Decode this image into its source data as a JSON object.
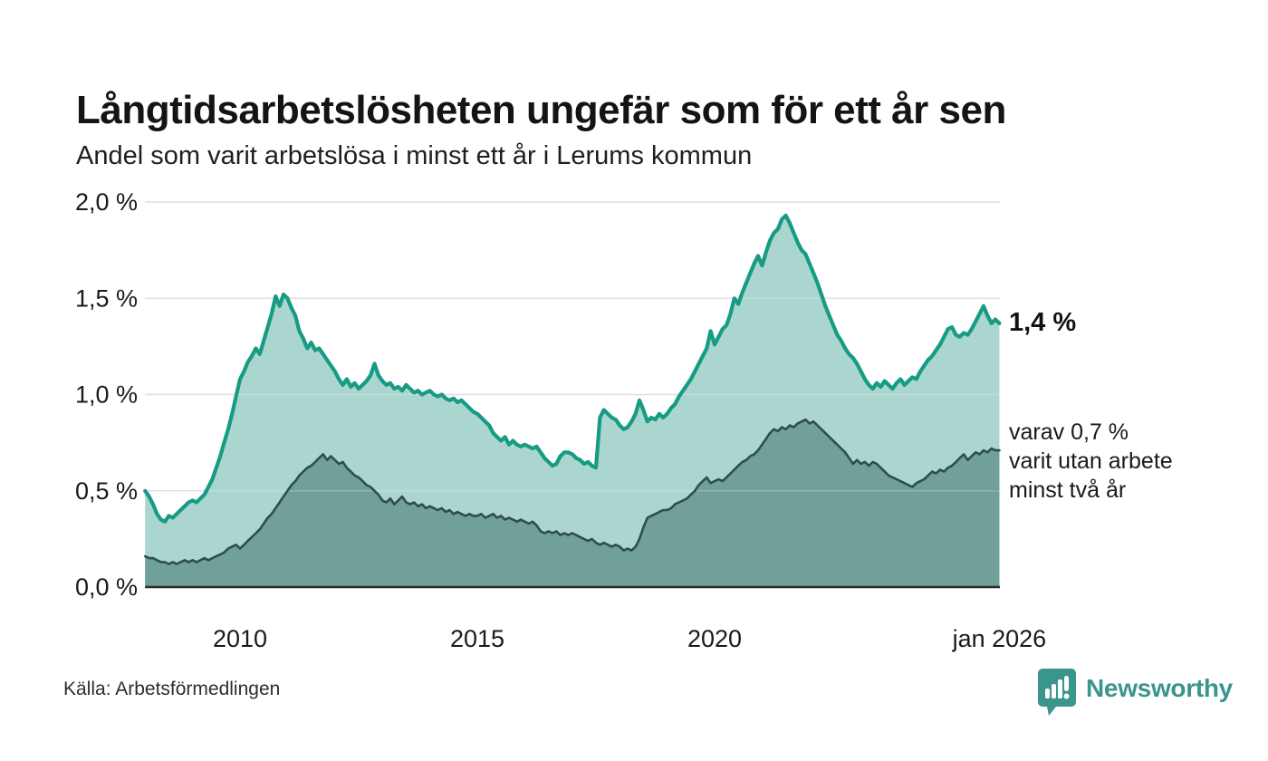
{
  "page": {
    "title": "Långtidsarbetslösheten ungefär som för ett år sen",
    "subtitle": "Andel som varit arbetslösa i minst ett år i Lerums kommun",
    "source": "Källa: Arbetsförmedlingen",
    "logo": {
      "name": "Newsworthy",
      "badge_color": "#3a958c",
      "badge_glyph": "bar-chart-exclamation"
    }
  },
  "chart_data": {
    "type": "area",
    "title": "Långtidsarbetslösheten ungefär som för ett år sen",
    "subtitle": "Andel som varit arbetslösa i minst ett år i Lerums kommun",
    "x_start_year": 2008,
    "x_interval_months": 1,
    "x_range": [
      "2008",
      "jan 2026"
    ],
    "ylim": [
      0.0,
      2.0
    ],
    "grid": "horizontal",
    "legend_position": "none",
    "colors": {
      "line_1yr": "#169b84",
      "fill_1yr": "#a6d4cc",
      "line_2yr": "#2e4f48",
      "fill_2yr": "#70a098",
      "gridline": "#d8d8d8",
      "baseline": "#2b2b2b"
    },
    "y_ticks": [
      {
        "value": 0.0,
        "label": "0,0 %"
      },
      {
        "value": 0.5,
        "label": "0,5 %"
      },
      {
        "value": 1.0,
        "label": "1,0 %"
      },
      {
        "value": 1.5,
        "label": "1,5 %"
      },
      {
        "value": 2.0,
        "label": "2,0 %"
      }
    ],
    "x_ticks": [
      {
        "year": 2010,
        "label": "2010"
      },
      {
        "year": 2015,
        "label": "2015"
      },
      {
        "year": 2020,
        "label": "2020"
      },
      {
        "year": 2026,
        "label": "jan 2026"
      }
    ],
    "series": [
      {
        "name": "arbetslösa minst ett år",
        "color": "#169b84",
        "fill": "#a6d4cc",
        "values": [
          0.5,
          0.47,
          0.43,
          0.38,
          0.35,
          0.34,
          0.37,
          0.36,
          0.38,
          0.4,
          0.42,
          0.44,
          0.45,
          0.44,
          0.46,
          0.48,
          0.52,
          0.56,
          0.62,
          0.68,
          0.75,
          0.82,
          0.9,
          0.99,
          1.08,
          1.12,
          1.17,
          1.2,
          1.24,
          1.21,
          1.28,
          1.35,
          1.42,
          1.51,
          1.46,
          1.52,
          1.5,
          1.45,
          1.41,
          1.33,
          1.29,
          1.24,
          1.27,
          1.23,
          1.24,
          1.21,
          1.18,
          1.15,
          1.12,
          1.08,
          1.05,
          1.08,
          1.04,
          1.06,
          1.03,
          1.05,
          1.07,
          1.1,
          1.16,
          1.1,
          1.07,
          1.05,
          1.06,
          1.03,
          1.04,
          1.02,
          1.05,
          1.03,
          1.01,
          1.02,
          1.0,
          1.01,
          1.02,
          1.0,
          0.99,
          1.0,
          0.98,
          0.97,
          0.98,
          0.96,
          0.97,
          0.95,
          0.93,
          0.91,
          0.9,
          0.88,
          0.86,
          0.84,
          0.8,
          0.78,
          0.76,
          0.78,
          0.74,
          0.76,
          0.74,
          0.73,
          0.74,
          0.73,
          0.72,
          0.73,
          0.7,
          0.67,
          0.65,
          0.63,
          0.64,
          0.68,
          0.7,
          0.7,
          0.69,
          0.67,
          0.66,
          0.64,
          0.65,
          0.63,
          0.62,
          0.88,
          0.92,
          0.9,
          0.88,
          0.87,
          0.84,
          0.82,
          0.83,
          0.86,
          0.9,
          0.97,
          0.92,
          0.86,
          0.88,
          0.87,
          0.9,
          0.88,
          0.9,
          0.93,
          0.95,
          0.99,
          1.02,
          1.05,
          1.08,
          1.12,
          1.16,
          1.2,
          1.24,
          1.33,
          1.26,
          1.3,
          1.34,
          1.36,
          1.42,
          1.5,
          1.47,
          1.53,
          1.58,
          1.63,
          1.68,
          1.72,
          1.67,
          1.74,
          1.8,
          1.84,
          1.86,
          1.91,
          1.93,
          1.89,
          1.84,
          1.79,
          1.75,
          1.73,
          1.68,
          1.63,
          1.58,
          1.52,
          1.46,
          1.41,
          1.36,
          1.31,
          1.28,
          1.24,
          1.21,
          1.19,
          1.16,
          1.12,
          1.08,
          1.05,
          1.03,
          1.06,
          1.04,
          1.07,
          1.05,
          1.03,
          1.06,
          1.08,
          1.05,
          1.07,
          1.09,
          1.08,
          1.12,
          1.15,
          1.18,
          1.2,
          1.23,
          1.26,
          1.3,
          1.34,
          1.35,
          1.31,
          1.3,
          1.32,
          1.31,
          1.34,
          1.38,
          1.42,
          1.46,
          1.41,
          1.37,
          1.39,
          1.37
        ]
      },
      {
        "name": "arbetslösa minst två år",
        "color": "#2e4f48",
        "fill": "#70a098",
        "values": [
          0.16,
          0.15,
          0.15,
          0.14,
          0.13,
          0.13,
          0.12,
          0.13,
          0.12,
          0.13,
          0.14,
          0.13,
          0.14,
          0.13,
          0.14,
          0.15,
          0.14,
          0.15,
          0.16,
          0.17,
          0.18,
          0.2,
          0.21,
          0.22,
          0.2,
          0.22,
          0.24,
          0.26,
          0.28,
          0.3,
          0.33,
          0.36,
          0.38,
          0.41,
          0.44,
          0.47,
          0.5,
          0.53,
          0.55,
          0.58,
          0.6,
          0.62,
          0.63,
          0.65,
          0.67,
          0.69,
          0.66,
          0.68,
          0.66,
          0.64,
          0.65,
          0.62,
          0.6,
          0.58,
          0.57,
          0.55,
          0.53,
          0.52,
          0.5,
          0.48,
          0.45,
          0.44,
          0.46,
          0.43,
          0.45,
          0.47,
          0.44,
          0.43,
          0.44,
          0.42,
          0.43,
          0.41,
          0.42,
          0.41,
          0.4,
          0.41,
          0.39,
          0.4,
          0.38,
          0.39,
          0.38,
          0.37,
          0.38,
          0.37,
          0.37,
          0.38,
          0.36,
          0.37,
          0.38,
          0.36,
          0.37,
          0.35,
          0.36,
          0.35,
          0.34,
          0.35,
          0.34,
          0.33,
          0.34,
          0.32,
          0.29,
          0.28,
          0.29,
          0.28,
          0.29,
          0.27,
          0.28,
          0.27,
          0.28,
          0.27,
          0.26,
          0.25,
          0.24,
          0.25,
          0.23,
          0.22,
          0.23,
          0.22,
          0.21,
          0.22,
          0.21,
          0.19,
          0.2,
          0.19,
          0.21,
          0.25,
          0.31,
          0.36,
          0.37,
          0.38,
          0.39,
          0.4,
          0.4,
          0.41,
          0.43,
          0.44,
          0.45,
          0.46,
          0.48,
          0.5,
          0.53,
          0.55,
          0.57,
          0.54,
          0.55,
          0.56,
          0.55,
          0.57,
          0.59,
          0.61,
          0.63,
          0.65,
          0.66,
          0.68,
          0.69,
          0.71,
          0.74,
          0.77,
          0.8,
          0.82,
          0.81,
          0.83,
          0.82,
          0.84,
          0.83,
          0.85,
          0.86,
          0.87,
          0.85,
          0.86,
          0.84,
          0.82,
          0.8,
          0.78,
          0.76,
          0.74,
          0.72,
          0.7,
          0.67,
          0.64,
          0.66,
          0.64,
          0.65,
          0.63,
          0.65,
          0.64,
          0.62,
          0.6,
          0.58,
          0.57,
          0.56,
          0.55,
          0.54,
          0.53,
          0.52,
          0.54,
          0.55,
          0.56,
          0.58,
          0.6,
          0.59,
          0.61,
          0.6,
          0.62,
          0.63,
          0.65,
          0.67,
          0.69,
          0.66,
          0.68,
          0.7,
          0.69,
          0.71,
          0.7,
          0.72,
          0.71,
          0.71
        ]
      }
    ],
    "annotations": [
      {
        "text": "1,4 %",
        "series": "arbetslösa minst ett år",
        "at": "end"
      },
      {
        "lines": [
          "varav 0,7 %",
          "varit utan arbete",
          "minst två år"
        ],
        "series": "arbetslösa minst två år",
        "at": "end"
      }
    ]
  }
}
